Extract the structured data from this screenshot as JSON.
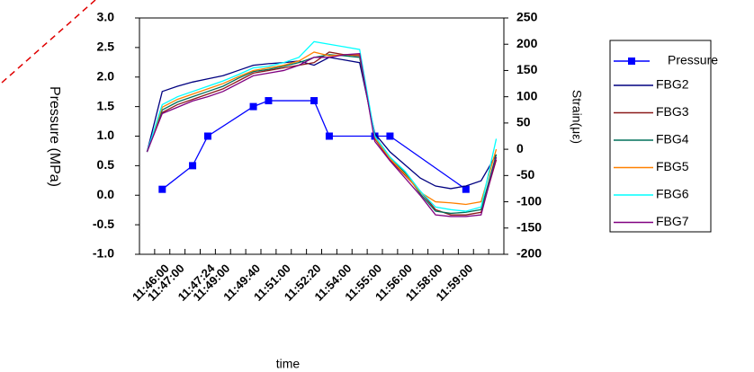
{
  "chart_data": {
    "type": "line",
    "xlabel": "time",
    "ylabel": "Pressure (MPa)",
    "y2label": "Strain(με)",
    "categories": [
      null,
      "11:46:00",
      "11:47:00",
      null,
      "11:47:24",
      "11:49:00",
      null,
      "11:49:40",
      null,
      "11:51:00",
      null,
      "11:52:20",
      null,
      "11:54:00",
      null,
      "11:55:00",
      null,
      "11:56:00",
      null,
      "11:58:00",
      null,
      "11:59:00",
      null,
      null
    ],
    "span_gaps": true,
    "series": [
      {
        "name": "Pressure",
        "color": "#0000ff",
        "marker": "square",
        "axis": "y",
        "values": [
          null,
          0.1,
          null,
          0.5,
          1.0,
          null,
          null,
          1.5,
          1.6,
          null,
          null,
          1.6,
          1.0,
          null,
          null,
          1.0,
          1.0,
          null,
          null,
          null,
          null,
          0.1,
          null,
          null
        ]
      },
      {
        "name": "FBG2",
        "color": "#000080",
        "axis": "y2",
        "values": [
          -5,
          110,
          120,
          128,
          134,
          140,
          150,
          160,
          163,
          165,
          168,
          160,
          175,
          170,
          165,
          30,
          -5,
          -30,
          -55,
          -70,
          -75,
          -70,
          -60,
          -10
        ]
      },
      {
        "name": "FBG3",
        "color": "#8b1a1a",
        "axis": "y2",
        "values": [
          -5,
          70,
          85,
          95,
          105,
          115,
          130,
          145,
          150,
          155,
          160,
          165,
          185,
          180,
          178,
          20,
          -20,
          -50,
          -80,
          -115,
          -125,
          -125,
          -120,
          -20
        ]
      },
      {
        "name": "FBG4",
        "color": "#00705a",
        "axis": "y2",
        "values": [
          -5,
          75,
          90,
          100,
          110,
          120,
          135,
          148,
          152,
          158,
          165,
          175,
          180,
          178,
          175,
          25,
          -15,
          -45,
          -85,
          -118,
          -122,
          -120,
          -115,
          -10
        ]
      },
      {
        "name": "FBG5",
        "color": "#ff8000",
        "axis": "y2",
        "values": [
          -5,
          80,
          95,
          105,
          115,
          125,
          138,
          150,
          155,
          160,
          168,
          185,
          178,
          180,
          180,
          22,
          -18,
          -48,
          -82,
          -100,
          -102,
          -105,
          -100,
          0
        ]
      },
      {
        "name": "FBG6",
        "color": "#00ffff",
        "axis": "y2",
        "values": [
          -5,
          85,
          100,
          110,
          120,
          130,
          142,
          155,
          158,
          165,
          175,
          205,
          200,
          195,
          190,
          25,
          -15,
          -42,
          -80,
          -110,
          -115,
          -118,
          -110,
          20
        ]
      },
      {
        "name": "FBG7",
        "color": "#800080",
        "axis": "y2",
        "values": [
          -5,
          68,
          80,
          92,
          100,
          110,
          125,
          140,
          145,
          150,
          160,
          175,
          175,
          180,
          182,
          15,
          -22,
          -55,
          -88,
          -125,
          -128,
          -128,
          -125,
          -15
        ]
      }
    ],
    "ylim": [
      -1.0,
      3.0
    ],
    "yticks": [
      {
        "value": -1.0,
        "label": "-1.0"
      },
      {
        "value": -0.5,
        "label": "-0.5"
      },
      {
        "value": 0.0,
        "label": "0.0"
      },
      {
        "value": 0.5,
        "label": "0.5"
      },
      {
        "value": 1.0,
        "label": "1.0"
      },
      {
        "value": 1.5,
        "label": "1.5"
      },
      {
        "value": 2.0,
        "label": "2.0"
      },
      {
        "value": 2.5,
        "label": "2.5"
      },
      {
        "value": 3.0,
        "label": "3.0"
      }
    ],
    "y2lim": [
      -200,
      250
    ],
    "y2ticks": [
      -200,
      -150,
      -100,
      -50,
      0,
      50,
      100,
      150,
      200,
      250
    ],
    "legend": "right"
  }
}
